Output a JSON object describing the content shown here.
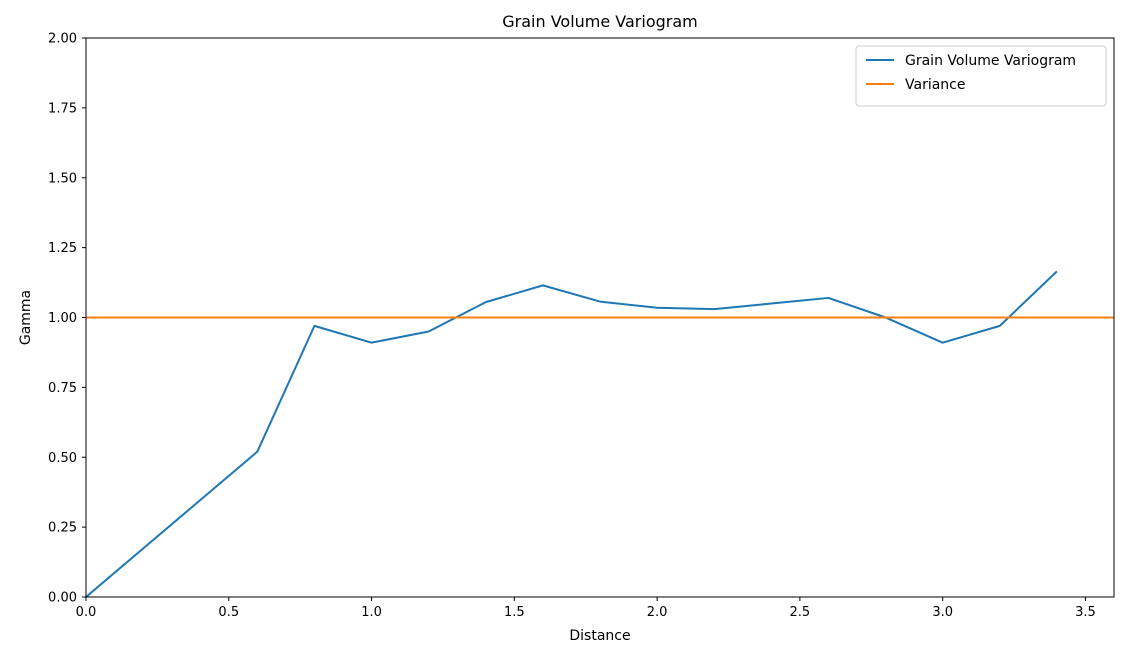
{
  "chart_data": {
    "type": "line",
    "title": "Grain Volume Variogram",
    "xlabel": "Distance",
    "ylabel": "Gamma",
    "xlim": [
      0.0,
      3.6
    ],
    "ylim": [
      0.0,
      2.0
    ],
    "xticks": [
      "0.0",
      "0.5",
      "1.0",
      "1.5",
      "2.0",
      "2.5",
      "3.0",
      "3.5"
    ],
    "yticks": [
      "0.00",
      "0.25",
      "0.50",
      "0.75",
      "1.00",
      "1.25",
      "1.50",
      "1.75",
      "2.00"
    ],
    "legend_position": "top-right",
    "grid": false,
    "series": [
      {
        "name": "Grain Volume Variogram",
        "color": "#1f77b4",
        "x": [
          0.0,
          0.6,
          0.8,
          1.0,
          1.2,
          1.4,
          1.6,
          1.8,
          2.0,
          2.2,
          2.4,
          2.6,
          2.8,
          3.0,
          3.2,
          3.4
        ],
        "y": [
          0.0,
          0.52,
          0.97,
          0.91,
          0.95,
          1.055,
          1.115,
          1.057,
          1.035,
          1.03,
          1.05,
          1.07,
          1.0,
          0.91,
          0.97,
          1.165
        ]
      },
      {
        "name": "Variance",
        "color": "#ff7f0e",
        "x": [
          0.0,
          3.6
        ],
        "y": [
          1.0,
          1.0
        ]
      }
    ]
  }
}
